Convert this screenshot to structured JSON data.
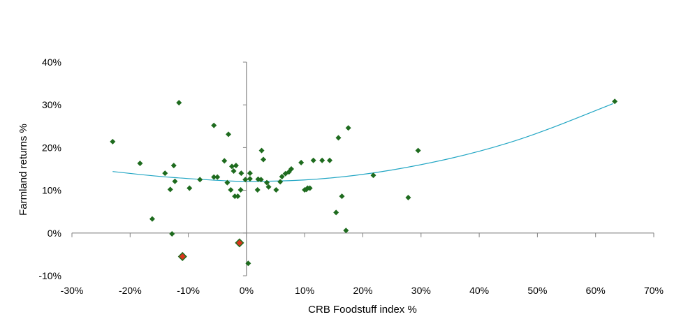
{
  "chart_data": {
    "type": "scatter",
    "title": "",
    "xlabel": "CRB Foodstuff index %",
    "ylabel": "Farmland returns %",
    "xlim": [
      -30,
      70
    ],
    "ylim": [
      -10,
      40
    ],
    "x_ticks": [
      "-30%",
      "-20%",
      "-10%",
      "0%",
      "10%",
      "20%",
      "30%",
      "40%",
      "50%",
      "60%",
      "70%"
    ],
    "y_ticks": [
      "40%",
      "30%",
      "20%",
      "10%",
      "0%",
      "-10%"
    ],
    "grid": false,
    "legend": "none",
    "colors": {
      "points": "#1e6b1e",
      "highlight_fill": "#d9341c",
      "highlight_stroke": "#1e6b1e",
      "trendline": "#22a6c4",
      "axis": "#808080"
    },
    "trendline": {
      "kind": "polynomial-2",
      "points": [
        [
          -23,
          14.4
        ],
        [
          -15,
          13.2
        ],
        [
          -5,
          12.3
        ],
        [
          0,
          12.0
        ],
        [
          10,
          12.3
        ],
        [
          20,
          13.6
        ],
        [
          30,
          15.9
        ],
        [
          40,
          19.0
        ],
        [
          50,
          23.2
        ],
        [
          63,
          30.3
        ]
      ]
    },
    "series": [
      {
        "points": [
          [
            -23.0,
            21.4
          ],
          [
            -18.3,
            16.3
          ],
          [
            -16.2,
            3.3
          ],
          [
            -14.0,
            14.0
          ],
          [
            -13.1,
            10.2
          ],
          [
            -12.8,
            -0.2
          ],
          [
            -12.5,
            15.8
          ],
          [
            -12.3,
            12.1
          ],
          [
            -11.6,
            30.5
          ],
          [
            -9.8,
            10.5
          ],
          [
            -8.0,
            12.5
          ],
          [
            -5.6,
            25.2
          ],
          [
            -5.6,
            13.1
          ],
          [
            -5.0,
            13.1
          ],
          [
            -3.8,
            16.9
          ],
          [
            -3.3,
            11.8
          ],
          [
            -3.1,
            23.1
          ],
          [
            -2.7,
            10.1
          ],
          [
            -2.5,
            15.6
          ],
          [
            -2.2,
            14.5
          ],
          [
            -2.0,
            8.6
          ],
          [
            -1.8,
            15.8
          ],
          [
            -1.5,
            8.6
          ],
          [
            -1.0,
            10.1
          ],
          [
            -0.9,
            14.0
          ],
          [
            -0.2,
            12.5
          ],
          [
            0.3,
            -7.1
          ],
          [
            0.6,
            14.0
          ],
          [
            0.6,
            12.7
          ],
          [
            1.9,
            10.1
          ],
          [
            2.0,
            12.6
          ],
          [
            2.5,
            12.5
          ],
          [
            2.6,
            19.3
          ],
          [
            2.9,
            17.2
          ],
          [
            3.5,
            11.8
          ],
          [
            3.8,
            10.8
          ],
          [
            5.1,
            10.1
          ],
          [
            5.8,
            12.0
          ],
          [
            6.1,
            13.2
          ],
          [
            6.7,
            13.9
          ],
          [
            7.3,
            14.3
          ],
          [
            7.7,
            15.0
          ],
          [
            9.4,
            16.5
          ],
          [
            10.0,
            10.1
          ],
          [
            10.3,
            10.2
          ],
          [
            10.5,
            10.5
          ],
          [
            10.9,
            10.5
          ],
          [
            11.5,
            17.0
          ],
          [
            13.0,
            17.0
          ],
          [
            14.3,
            17.0
          ],
          [
            15.4,
            4.8
          ],
          [
            15.8,
            22.3
          ],
          [
            16.4,
            8.6
          ],
          [
            17.1,
            0.6
          ],
          [
            17.5,
            24.6
          ],
          [
            21.8,
            13.5
          ],
          [
            27.8,
            8.3
          ],
          [
            29.5,
            19.3
          ],
          [
            63.3,
            30.8
          ]
        ]
      },
      {
        "points": [
          [
            -11.0,
            -5.5
          ],
          [
            -1.2,
            -2.3
          ]
        ]
      }
    ]
  }
}
